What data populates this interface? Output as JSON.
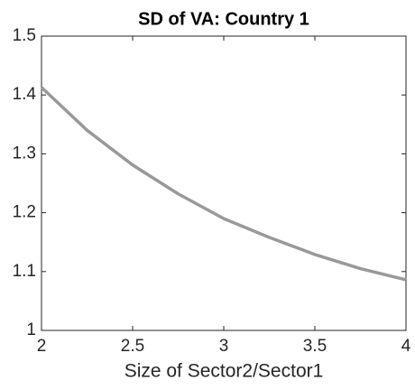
{
  "chart_data": {
    "type": "line",
    "title": "SD of VA: Country 1",
    "xlabel": "Size of Sector2/Sector1",
    "x": [
      2,
      2.25,
      2.5,
      2.75,
      3,
      3.25,
      3.5,
      3.75,
      4
    ],
    "series": [
      {
        "name": "SD of VA",
        "color": "#999999",
        "values": [
          1.413,
          1.34,
          1.281,
          1.232,
          1.19,
          1.158,
          1.129,
          1.105,
          1.086
        ]
      }
    ],
    "xlim": [
      2,
      4
    ],
    "xticks": [
      2,
      2.5,
      3,
      3.5,
      4
    ],
    "ylim": [
      1,
      1.5
    ],
    "yticks": [
      1,
      1.1,
      1.2,
      1.3,
      1.4,
      1.5
    ],
    "grid": false
  }
}
